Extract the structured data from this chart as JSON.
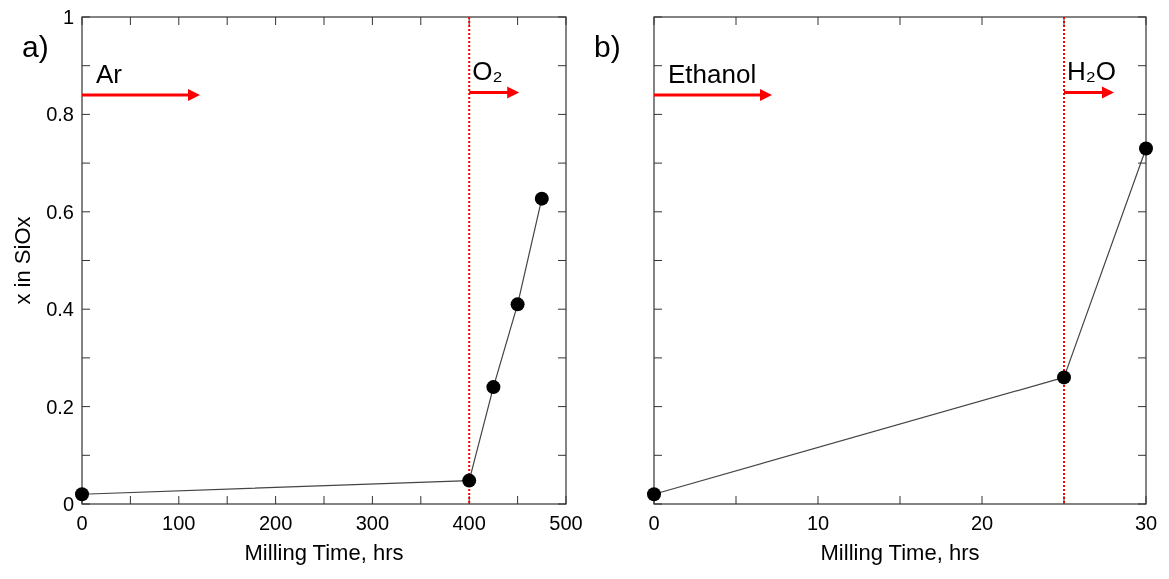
{
  "chart_data": [
    {
      "type": "line",
      "title": "a)",
      "xlabel": "Milling Time, hrs",
      "ylabel": "x in SiOx",
      "x": [
        0,
        400,
        425,
        450,
        475
      ],
      "series": [
        {
          "color": "#000000",
          "values": [
            0.02,
            0.048,
            0.24,
            0.41,
            0.627
          ]
        }
      ],
      "marker": "circle",
      "line_style": "solid",
      "xlim": [
        0,
        500
      ],
      "xticks": [
        0,
        {
          "value": 50,
          "label": null
        },
        100,
        {
          "value": 150,
          "label": null
        },
        200,
        {
          "value": 250,
          "label": null
        },
        300,
        {
          "value": 350,
          "label": null
        },
        400,
        {
          "value": 450,
          "label": null
        },
        500
      ],
      "ylim": [
        0,
        1
      ],
      "yticks": [
        0,
        {
          "value": 0.1,
          "label": null
        },
        0.2,
        {
          "value": 0.3,
          "label": null
        },
        0.4,
        {
          "value": 0.5,
          "label": null
        },
        0.6,
        {
          "value": 0.7,
          "label": null
        },
        0.8,
        {
          "value": 0.9,
          "label": null
        },
        1
      ],
      "ref_lines": [
        {
          "axis": "x",
          "value": 400,
          "color": "#ff0000",
          "line_style": "dotted"
        }
      ],
      "annotations": [
        "Ar",
        {
          "text": "O₂",
          "x": 400,
          "y": 0.845
        }
      ]
    },
    {
      "type": "line",
      "title": "b)",
      "xlabel": "Milling Time, hrs",
      "x": [
        0,
        25,
        30
      ],
      "series": [
        {
          "color": "#000000",
          "values": [
            0.02,
            0.26,
            0.73
          ]
        }
      ],
      "marker": "circle",
      "line_style": "solid",
      "xlim": [
        0,
        30
      ],
      "xticks": [
        0,
        {
          "value": 5,
          "label": null
        },
        10,
        {
          "value": 15,
          "label": null
        },
        20,
        {
          "value": 25,
          "label": null
        },
        30
      ],
      "ylim": [
        0,
        1
      ],
      "yticks": [
        0,
        {
          "value": 0.1,
          "label": null
        },
        0.2,
        {
          "value": 0.3,
          "label": null
        },
        0.4,
        {
          "value": 0.5,
          "label": null
        },
        0.6,
        {
          "value": 0.7,
          "label": null
        },
        0.8,
        {
          "value": 0.9,
          "label": null
        },
        1
      ],
      "tick_labels": "x",
      "ref_lines": [
        {
          "axis": "x",
          "value": 25,
          "color": "#ff0000",
          "line_style": "dotted"
        }
      ],
      "annotations": [
        "Ethanol",
        {
          "text": "H₂O",
          "x": 25,
          "y": 0.845
        }
      ]
    }
  ]
}
